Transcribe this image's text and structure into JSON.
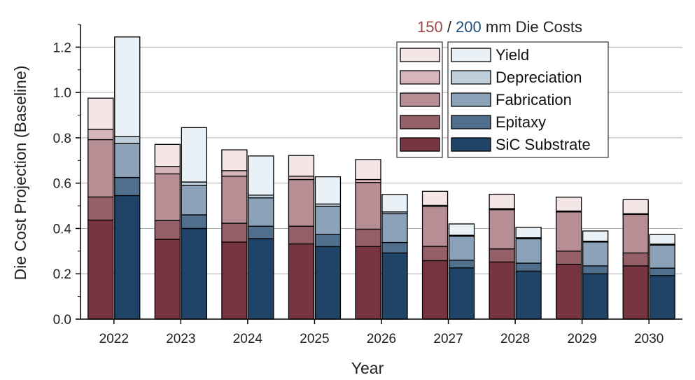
{
  "chart_data": {
    "type": "bar",
    "stacked": true,
    "grouped": true,
    "title_parts": {
      "a": "150",
      "sep": " / ",
      "b": "200",
      "rest": " mm Die Costs"
    },
    "xlabel": "Year",
    "ylabel": "Die Cost Projection (Baseline)",
    "ylim": [
      0,
      1.3
    ],
    "yticks": [
      0.0,
      0.2,
      0.4,
      0.6,
      0.8,
      1.0,
      1.2
    ],
    "ytick_labels": [
      "0.0",
      "0.2",
      "0.4",
      "0.6",
      "0.8",
      "1.0",
      "1.2"
    ],
    "grid": true,
    "categories": [
      "2022",
      "2023",
      "2024",
      "2025",
      "2026",
      "2027",
      "2028",
      "2029",
      "2030"
    ],
    "components": [
      "SiC Substrate",
      "Epitaxy",
      "Fabrication",
      "Depreciation",
      "Yield"
    ],
    "legend_order": [
      "Yield",
      "Depreciation",
      "Fabrication",
      "Epitaxy",
      "SiC Substrate"
    ],
    "series": [
      {
        "name": "150 mm",
        "color": "#8b4f5a",
        "component_colors": [
          "#763540",
          "#955f67",
          "#b68e94",
          "#d6b6ba",
          "#f4e5e7"
        ],
        "stacks": [
          [
            0.437,
            0.102,
            0.253,
            0.046,
            0.137
          ],
          [
            0.352,
            0.083,
            0.206,
            0.033,
            0.097
          ],
          [
            0.34,
            0.083,
            0.208,
            0.024,
            0.092
          ],
          [
            0.332,
            0.078,
            0.206,
            0.015,
            0.091
          ],
          [
            0.32,
            0.077,
            0.206,
            0.013,
            0.088
          ],
          [
            0.258,
            0.063,
            0.175,
            0.006,
            0.062
          ],
          [
            0.252,
            0.058,
            0.173,
            0.005,
            0.063
          ],
          [
            0.242,
            0.058,
            0.173,
            0.004,
            0.061
          ],
          [
            0.235,
            0.057,
            0.17,
            0.003,
            0.062
          ]
        ]
      },
      {
        "name": "200 mm",
        "color": "#1f4e79",
        "component_colors": [
          "#1f4467",
          "#506f8c",
          "#8ba2b8",
          "#c0cfdc",
          "#e9f0f6"
        ],
        "stacks": [
          [
            0.545,
            0.08,
            0.15,
            0.03,
            0.44
          ],
          [
            0.4,
            0.06,
            0.13,
            0.015,
            0.24
          ],
          [
            0.355,
            0.055,
            0.125,
            0.012,
            0.173
          ],
          [
            0.32,
            0.053,
            0.125,
            0.01,
            0.12
          ],
          [
            0.292,
            0.046,
            0.127,
            0.008,
            0.077
          ],
          [
            0.226,
            0.034,
            0.106,
            0.004,
            0.05
          ],
          [
            0.212,
            0.035,
            0.108,
            0.004,
            0.046
          ],
          [
            0.2,
            0.035,
            0.105,
            0.004,
            0.045
          ],
          [
            0.192,
            0.033,
            0.102,
            0.004,
            0.042
          ]
        ]
      }
    ]
  }
}
